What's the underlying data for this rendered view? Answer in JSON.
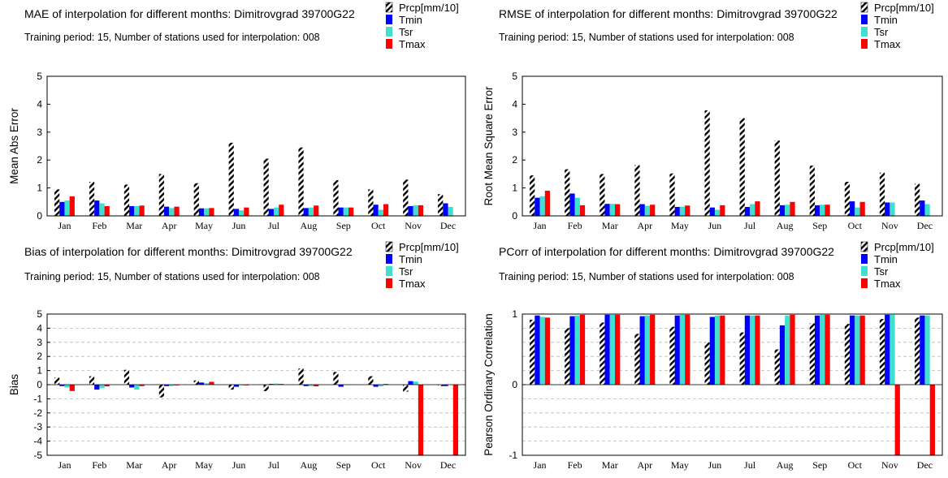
{
  "series_styles": {
    "Prcp[mm/10]": {
      "fill": "url(#hatch)"
    },
    "Tmin": {
      "fill": "#0000ff"
    },
    "Tsr": {
      "fill": "#40e0d0"
    },
    "Tmax": {
      "fill": "#ff0000"
    }
  },
  "chart_data": [
    {
      "type": "bar",
      "title": "MAE of interpolation for different months: Dimitrovgrad  39700G22",
      "subtitle": "Training period: 15, Number of stations used for interpolation: 008",
      "ylabel": "Mean Abs Error",
      "ylim": [
        0,
        5
      ],
      "yticks": [
        0,
        1,
        2,
        3,
        4,
        5
      ],
      "grid": false,
      "legend": "top-right",
      "categories": [
        "Jan",
        "Feb",
        "Mar",
        "Apr",
        "May",
        "Jun",
        "Jul",
        "Aug",
        "Sep",
        "Oct",
        "Nov",
        "Dec"
      ],
      "series": [
        {
          "name": "Prcp[mm/10]",
          "values": [
            0.95,
            1.22,
            1.12,
            1.5,
            1.17,
            2.62,
            2.05,
            2.45,
            1.28,
            0.95,
            1.3,
            0.78
          ]
        },
        {
          "name": "Tmin",
          "values": [
            0.5,
            0.55,
            0.35,
            0.33,
            0.27,
            0.25,
            0.25,
            0.28,
            0.3,
            0.4,
            0.35,
            0.45
          ]
        },
        {
          "name": "Tsr",
          "values": [
            0.55,
            0.45,
            0.35,
            0.28,
            0.27,
            0.2,
            0.3,
            0.3,
            0.3,
            0.22,
            0.38,
            0.32
          ]
        },
        {
          "name": "Tmax",
          "values": [
            0.7,
            0.35,
            0.37,
            0.33,
            0.28,
            0.3,
            0.4,
            0.37,
            0.3,
            0.42,
            0.38,
            0.0
          ]
        }
      ]
    },
    {
      "type": "bar",
      "title": "RMSE of interpolation for different months: Dimitrovgrad  39700G22",
      "subtitle": "Training period: 15, Number of stations used for interpolation: 008",
      "ylabel": "Root Mean Square Error",
      "ylim": [
        0,
        5
      ],
      "yticks": [
        0,
        1,
        2,
        3,
        4,
        5
      ],
      "grid": false,
      "legend": "top-right",
      "categories": [
        "Jan",
        "Feb",
        "Mar",
        "Apr",
        "May",
        "Jun",
        "Jul",
        "Aug",
        "Sep",
        "Oct",
        "Nov",
        "Dec"
      ],
      "series": [
        {
          "name": "Prcp[mm/10]",
          "values": [
            1.45,
            1.67,
            1.5,
            1.82,
            1.52,
            3.78,
            3.5,
            2.7,
            1.8,
            1.22,
            1.55,
            1.15
          ]
        },
        {
          "name": "Tmin",
          "values": [
            0.65,
            0.8,
            0.43,
            0.42,
            0.32,
            0.3,
            0.32,
            0.38,
            0.38,
            0.52,
            0.48,
            0.55
          ]
        },
        {
          "name": "Tsr",
          "values": [
            0.7,
            0.65,
            0.43,
            0.36,
            0.33,
            0.22,
            0.42,
            0.4,
            0.4,
            0.3,
            0.48,
            0.42
          ]
        },
        {
          "name": "Tmax",
          "values": [
            0.9,
            0.38,
            0.42,
            0.4,
            0.37,
            0.38,
            0.52,
            0.5,
            0.4,
            0.5,
            0.0,
            0.0
          ]
        }
      ]
    },
    {
      "type": "bar",
      "title": "Bias of interpolation for different months: Dimitrovgrad  39700G22",
      "subtitle": "Training period: 15, Number of stations used for interpolation: 008",
      "ylabel": "Bias",
      "ylim": [
        -5,
        5
      ],
      "yticks": [
        -5,
        -4,
        -3,
        -2,
        -1,
        0,
        1,
        2,
        3,
        4,
        5
      ],
      "grid": true,
      "legend": "top-right",
      "categories": [
        "Jan",
        "Feb",
        "Mar",
        "Apr",
        "May",
        "Jun",
        "Jul",
        "Aug",
        "Sep",
        "Oct",
        "Nov",
        "Dec"
      ],
      "series": [
        {
          "name": "Prcp[mm/10]",
          "values": [
            0.5,
            0.6,
            1.05,
            -0.9,
            0.3,
            -0.35,
            -0.45,
            1.15,
            0.9,
            0.6,
            -0.5,
            -0.1
          ]
        },
        {
          "name": "Tmin",
          "values": [
            -0.1,
            -0.35,
            -0.2,
            -0.1,
            0.15,
            -0.15,
            0.05,
            -0.1,
            -0.15,
            -0.15,
            0.25,
            -0.1
          ]
        },
        {
          "name": "Tsr",
          "values": [
            -0.2,
            -0.25,
            -0.35,
            -0.1,
            0.1,
            -0.05,
            0.08,
            -0.1,
            -0.03,
            -0.12,
            0.22,
            0.0
          ]
        },
        {
          "name": "Tmax",
          "values": [
            -0.45,
            -0.12,
            -0.1,
            -0.05,
            0.2,
            -0.05,
            0.05,
            -0.12,
            0.0,
            0.05,
            -5.0,
            -5.0
          ]
        }
      ]
    },
    {
      "type": "bar",
      "title": "PCorr of interpolation for different months: Dimitrovgrad  39700G22",
      "subtitle": "Training period: 15, Number of stations used for interpolation: 008",
      "ylabel": "Pearson Ordinary Correlation",
      "ylim": [
        -1,
        1
      ],
      "yticks": [
        -1,
        0,
        1
      ],
      "grid": true,
      "legend": "top-right",
      "categories": [
        "Jan",
        "Feb",
        "Mar",
        "Apr",
        "May",
        "Jun",
        "Jul",
        "Aug",
        "Sep",
        "Oct",
        "Nov",
        "Dec"
      ],
      "series": [
        {
          "name": "Prcp[mm/10]",
          "values": [
            0.92,
            0.8,
            0.88,
            0.72,
            0.82,
            0.6,
            0.74,
            0.5,
            0.87,
            0.86,
            0.93,
            0.95
          ]
        },
        {
          "name": "Tmin",
          "values": [
            0.98,
            0.97,
            0.99,
            0.97,
            0.98,
            0.96,
            0.98,
            0.84,
            0.98,
            0.98,
            0.99,
            0.98
          ]
        },
        {
          "name": "Tsr",
          "values": [
            0.96,
            0.98,
            0.99,
            0.98,
            0.99,
            0.98,
            0.98,
            0.98,
            0.99,
            0.98,
            0.99,
            0.98
          ]
        },
        {
          "name": "Tmax",
          "values": [
            0.95,
            0.99,
            0.99,
            0.99,
            0.99,
            0.98,
            0.98,
            0.99,
            0.99,
            0.98,
            -1.0,
            -1.0
          ]
        }
      ]
    }
  ]
}
